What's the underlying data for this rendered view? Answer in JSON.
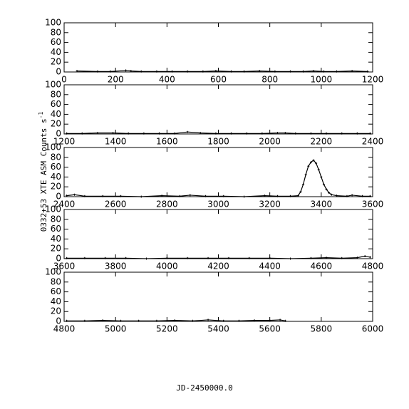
{
  "ylabel": "0332+53 XTE ASM Counts s",
  "ylabel_sup": "-1",
  "xlabel": "JD-2450000.0",
  "chart_data": [
    {
      "type": "line",
      "color": "#000000",
      "xlim": [
        0,
        1200
      ],
      "ylim": [
        0,
        100
      ],
      "xticks": [
        0,
        200,
        400,
        600,
        800,
        1000,
        1200
      ],
      "yticks": [
        0,
        20,
        40,
        60,
        80,
        100
      ],
      "x": [
        50,
        130,
        180,
        240,
        260,
        300,
        360,
        420,
        480,
        540,
        590,
        650,
        700,
        760,
        820,
        880,
        930,
        970,
        1010,
        1060,
        1120,
        1180
      ],
      "values": [
        2,
        1,
        1,
        3,
        2,
        1,
        1,
        1,
        1,
        1,
        2,
        1,
        1,
        2,
        1,
        1,
        1,
        2,
        1,
        1,
        2,
        1
      ]
    },
    {
      "type": "line",
      "color": "#000000",
      "xlim": [
        1200,
        2400
      ],
      "ylim": [
        0,
        100
      ],
      "xticks": [
        1200,
        1400,
        1600,
        1800,
        2000,
        2200,
        2400
      ],
      "yticks": [
        0,
        20,
        40,
        60,
        80,
        100
      ],
      "x": [
        1210,
        1270,
        1330,
        1390,
        1450,
        1510,
        1570,
        1630,
        1680,
        1730,
        1790,
        1850,
        1910,
        1970,
        2030,
        2060,
        2100,
        2160,
        2220,
        2280,
        2340,
        2390
      ],
      "values": [
        1,
        1,
        2,
        2,
        1,
        1,
        1,
        1,
        4,
        2,
        1,
        1,
        1,
        1,
        2,
        2,
        1,
        1,
        1,
        1,
        1,
        1
      ]
    },
    {
      "type": "line",
      "color": "#000000",
      "xlim": [
        2400,
        3600
      ],
      "ylim": [
        0,
        100
      ],
      "xticks": [
        2400,
        2600,
        2800,
        3000,
        3200,
        3400,
        3600
      ],
      "yticks": [
        0,
        20,
        40,
        60,
        80,
        100
      ],
      "x": [
        2410,
        2440,
        2480,
        2550,
        2620,
        2700,
        2780,
        2850,
        2890,
        2950,
        3020,
        3100,
        3180,
        3230,
        3280,
        3310,
        3320,
        3330,
        3340,
        3350,
        3360,
        3370,
        3380,
        3390,
        3400,
        3410,
        3420,
        3430,
        3440,
        3460,
        3500,
        3520,
        3560,
        3590
      ],
      "values": [
        2,
        4,
        1,
        1,
        1,
        0,
        2,
        1,
        3,
        1,
        1,
        0,
        2,
        1,
        1,
        2,
        10,
        25,
        45,
        62,
        70,
        74,
        68,
        55,
        40,
        25,
        15,
        8,
        4,
        2,
        1,
        3,
        1,
        1
      ]
    },
    {
      "type": "line",
      "color": "#000000",
      "xlim": [
        3600,
        4800
      ],
      "ylim": [
        0,
        100
      ],
      "xticks": [
        3600,
        3800,
        4000,
        4200,
        4400,
        4600,
        4800
      ],
      "yticks": [
        0,
        20,
        40,
        60,
        80,
        100
      ],
      "x": [
        3610,
        3680,
        3760,
        3840,
        3920,
        4000,
        4080,
        4160,
        4240,
        4320,
        4400,
        4480,
        4560,
        4620,
        4680,
        4740,
        4770,
        4790
      ],
      "values": [
        1,
        1,
        1,
        1,
        0,
        1,
        1,
        1,
        1,
        1,
        1,
        0,
        1,
        2,
        1,
        2,
        5,
        3
      ]
    },
    {
      "type": "line",
      "color": "#000000",
      "xlim": [
        4800,
        6000
      ],
      "ylim": [
        0,
        100
      ],
      "xticks": [
        4800,
        5000,
        5200,
        5400,
        5600,
        5800,
        6000
      ],
      "yticks": [
        0,
        20,
        40,
        60,
        80,
        100
      ],
      "x": [
        4810,
        4880,
        4950,
        5020,
        5090,
        5160,
        5230,
        5300,
        5360,
        5420,
        5480,
        5540,
        5600,
        5640,
        5660
      ],
      "values": [
        1,
        1,
        2,
        1,
        1,
        1,
        2,
        1,
        3,
        1,
        1,
        2,
        2,
        3,
        1
      ]
    }
  ]
}
